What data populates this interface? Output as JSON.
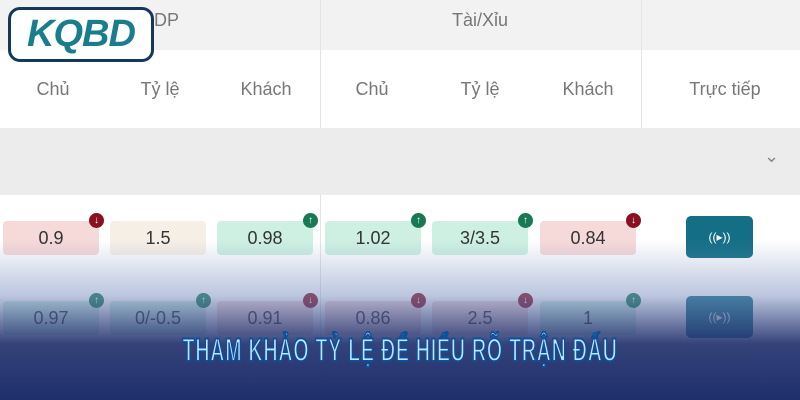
{
  "header": {
    "group1": "HDP",
    "group2": "Tài/Xỉu",
    "columns": [
      "Chủ",
      "Tỷ lệ",
      "Khách",
      "Chủ",
      "Tỷ lệ",
      "Khách",
      "Trực tiếp"
    ]
  },
  "logo": "KQBD",
  "rows": [
    {
      "cells": [
        {
          "v": "0.9",
          "c": "red",
          "a": "down"
        },
        {
          "v": "1.5",
          "c": "beige",
          "a": ""
        },
        {
          "v": "0.98",
          "c": "green",
          "a": "up"
        },
        {
          "v": "1.02",
          "c": "green",
          "a": "up"
        },
        {
          "v": "3/3.5",
          "c": "green",
          "a": "up"
        },
        {
          "v": "0.84",
          "c": "red",
          "a": "down"
        }
      ]
    },
    {
      "cells": [
        {
          "v": "0.97",
          "c": "green",
          "a": "up"
        },
        {
          "v": "0/-0.5",
          "c": "green",
          "a": "up"
        },
        {
          "v": "0.91",
          "c": "red",
          "a": "down"
        },
        {
          "v": "0.86",
          "c": "red",
          "a": "down"
        },
        {
          "v": "2.5",
          "c": "red",
          "a": "down"
        },
        {
          "v": "1",
          "c": "green",
          "a": "up"
        }
      ]
    }
  ],
  "live_icon": "broadcast-icon",
  "title": "THAM KHẢO TỶ LỆ ĐỂ HIỂU RÕ TRẬN ĐẤU",
  "colors": {
    "accent": "#146f86",
    "up": "#177a55",
    "down": "#8a1020",
    "banner": "#1e2f6c"
  }
}
